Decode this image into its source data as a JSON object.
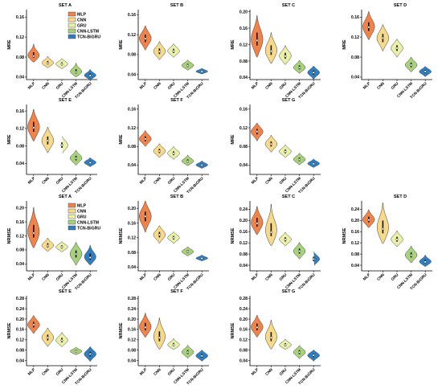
{
  "colors": {
    "MLP": "#f0834a",
    "CNN": "#f7d98a",
    "GRU": "#eaf0a8",
    "CNN-LSTM": "#a8d27a",
    "TCN-BiGRU": "#2f7fc0"
  },
  "legend": [
    "MLP",
    "CNN",
    "GRU",
    "CNN-LSTM",
    "TCN-BiGRU"
  ],
  "chart_data": [
    {
      "type": "violin",
      "title": "SET A",
      "ylabel": "MRE",
      "categories": [
        "MLP",
        "CNN",
        "GRU",
        "CNN-LSTM",
        "TCN-BiGRU"
      ],
      "ylim": [
        0.035,
        0.175
      ],
      "yticks": [
        0.04,
        0.08,
        0.12,
        0.16
      ],
      "series": [
        {
          "median": 0.082,
          "min": 0.072,
          "max": 0.104
        },
        {
          "median": 0.068,
          "min": 0.06,
          "max": 0.08
        },
        {
          "median": 0.066,
          "min": 0.058,
          "max": 0.076
        },
        {
          "median": 0.05,
          "min": 0.042,
          "max": 0.066
        },
        {
          "median": 0.043,
          "min": 0.036,
          "max": 0.054
        }
      ]
    },
    {
      "type": "violin",
      "title": "SET B",
      "ylabel": "MRE",
      "categories": [
        "MLP",
        "CNN",
        "GRU",
        "CNN-LSTM",
        "TCN-BiGRU"
      ],
      "ylim": [
        0.03,
        0.17
      ],
      "yticks": [
        0.04,
        0.08,
        0.12,
        0.16
      ],
      "series": [
        {
          "median": 0.112,
          "min": 0.092,
          "max": 0.135
        },
        {
          "median": 0.086,
          "min": 0.072,
          "max": 0.104
        },
        {
          "median": 0.087,
          "min": 0.076,
          "max": 0.1
        },
        {
          "median": 0.058,
          "min": 0.05,
          "max": 0.068
        },
        {
          "median": 0.046,
          "min": 0.042,
          "max": 0.052
        }
      ]
    },
    {
      "type": "violin",
      "title": "SET C",
      "ylabel": "MRE",
      "categories": [
        "MLP",
        "CNN",
        "GRU",
        "CNN-LSTM",
        "TCN-BiGRU"
      ],
      "ylim": [
        0.035,
        0.205
      ],
      "yticks": [
        0.04,
        0.08,
        0.12,
        0.16,
        0.2
      ],
      "series": [
        {
          "median": 0.13,
          "min": 0.095,
          "max": 0.185
        },
        {
          "median": 0.104,
          "min": 0.078,
          "max": 0.145
        },
        {
          "median": 0.092,
          "min": 0.074,
          "max": 0.115
        },
        {
          "median": 0.064,
          "min": 0.052,
          "max": 0.08
        },
        {
          "median": 0.052,
          "min": 0.038,
          "max": 0.066
        }
      ]
    },
    {
      "type": "violin",
      "title": "SET D",
      "ylabel": "MRE",
      "categories": [
        "MLP",
        "CNN",
        "GRU",
        "CNN-LSTM",
        "TCN-BiGRU"
      ],
      "ylim": [
        0.035,
        0.175
      ],
      "yticks": [
        0.04,
        0.08,
        0.12,
        0.16
      ],
      "series": [
        {
          "median": 0.14,
          "min": 0.118,
          "max": 0.168
        },
        {
          "median": 0.118,
          "min": 0.095,
          "max": 0.142
        },
        {
          "median": 0.098,
          "min": 0.082,
          "max": 0.114
        },
        {
          "median": 0.064,
          "min": 0.052,
          "max": 0.078
        },
        {
          "median": 0.051,
          "min": 0.042,
          "max": 0.06
        }
      ]
    },
    {
      "type": "violin",
      "title": "SET E",
      "ylabel": "MRE",
      "categories": [
        "MLP",
        "CNN",
        "GRU",
        "CNN-LSTM",
        "TCN-BiGRU"
      ],
      "ylim": [
        0.015,
        0.175
      ],
      "yticks": [
        0.04,
        0.08,
        0.12,
        0.16
      ],
      "series": [
        {
          "median": 0.122,
          "min": 0.095,
          "max": 0.16
        },
        {
          "median": 0.092,
          "min": 0.068,
          "max": 0.12
        },
        {
          "median": 0.082,
          "min": 0.064,
          "max": 0.1
        },
        {
          "median": 0.052,
          "min": 0.038,
          "max": 0.068
        },
        {
          "median": 0.042,
          "min": 0.034,
          "max": 0.052
        }
      ]
    },
    {
      "type": "violin",
      "title": "SET F",
      "ylabel": "MRE",
      "categories": [
        "MLP",
        "CNN",
        "GRU",
        "CNN-LSTM",
        "TCN-BiGRU"
      ],
      "ylim": [
        0.02,
        0.17
      ],
      "yticks": [
        0.04,
        0.08,
        0.12,
        0.16
      ],
      "series": [
        {
          "median": 0.096,
          "min": 0.082,
          "max": 0.112
        },
        {
          "median": 0.07,
          "min": 0.058,
          "max": 0.084
        },
        {
          "median": 0.065,
          "min": 0.054,
          "max": 0.078
        },
        {
          "median": 0.048,
          "min": 0.04,
          "max": 0.06
        },
        {
          "median": 0.04,
          "min": 0.034,
          "max": 0.048
        }
      ]
    },
    {
      "type": "violin",
      "title": "SET G",
      "ylabel": "MRE",
      "categories": [
        "MLP",
        "CNN",
        "GRU",
        "CNN-LSTM",
        "TCN-BiGRU"
      ],
      "ylim": [
        0.02,
        0.17
      ],
      "yticks": [
        0.04,
        0.08,
        0.12,
        0.16
      ],
      "series": [
        {
          "median": 0.112,
          "min": 0.094,
          "max": 0.128
        },
        {
          "median": 0.085,
          "min": 0.07,
          "max": 0.102
        },
        {
          "median": 0.069,
          "min": 0.058,
          "max": 0.082
        },
        {
          "median": 0.052,
          "min": 0.042,
          "max": 0.064
        },
        {
          "median": 0.043,
          "min": 0.036,
          "max": 0.052
        }
      ]
    },
    {
      "type": "violin",
      "title": "SET A",
      "ylabel": "NRMSE",
      "categories": [
        "MLP",
        "CNN",
        "GRU",
        "CNN-LSTM",
        "TCN-BiGRU"
      ],
      "ylim": [
        0.02,
        0.22
      ],
      "yticks": [
        0.04,
        0.08,
        0.12,
        0.16,
        0.2
      ],
      "series": [
        {
          "median": 0.128,
          "min": 0.092,
          "max": 0.195
        },
        {
          "median": 0.092,
          "min": 0.078,
          "max": 0.112
        },
        {
          "median": 0.088,
          "min": 0.076,
          "max": 0.102
        },
        {
          "median": 0.068,
          "min": 0.04,
          "max": 0.098
        },
        {
          "median": 0.058,
          "min": 0.04,
          "max": 0.09
        }
      ]
    },
    {
      "type": "violin",
      "title": "SET B",
      "ylabel": "NRMSE",
      "categories": [
        "MLP",
        "CNN",
        "GRU",
        "CNN-LSTM",
        "TCN-BiGRU"
      ],
      "ylim": [
        0.03,
        0.22
      ],
      "yticks": [
        0.04,
        0.08,
        0.12,
        0.16,
        0.2
      ],
      "series": [
        {
          "median": 0.178,
          "min": 0.14,
          "max": 0.215
        },
        {
          "median": 0.128,
          "min": 0.108,
          "max": 0.15
        },
        {
          "median": 0.12,
          "min": 0.106,
          "max": 0.134
        },
        {
          "median": 0.082,
          "min": 0.072,
          "max": 0.094
        },
        {
          "median": 0.064,
          "min": 0.058,
          "max": 0.072
        }
      ]
    },
    {
      "type": "violin",
      "title": "SET C",
      "ylabel": "NRMSE",
      "categories": [
        "MLP",
        "CNN",
        "GRU",
        "CNN-LSTM",
        "TCN-BiGRU"
      ],
      "ylim": [
        0.02,
        0.27
      ],
      "yticks": [
        0.04,
        0.08,
        0.12,
        0.16,
        0.2,
        0.24
      ],
      "series": [
        {
          "median": 0.19,
          "min": 0.155,
          "max": 0.245
        },
        {
          "median": 0.158,
          "min": 0.118,
          "max": 0.25
        },
        {
          "median": 0.132,
          "min": 0.112,
          "max": 0.155
        },
        {
          "median": 0.09,
          "min": 0.066,
          "max": 0.118
        },
        {
          "median": 0.062,
          "min": 0.04,
          "max": 0.086
        }
      ]
    },
    {
      "type": "violin",
      "title": "SET D",
      "ylabel": "NRMSE",
      "categories": [
        "MLP",
        "CNN",
        "GRU",
        "CNN-LSTM",
        "TCN-BiGRU"
      ],
      "ylim": [
        0.02,
        0.27
      ],
      "yticks": [
        0.04,
        0.08,
        0.12,
        0.16,
        0.2,
        0.24
      ],
      "series": [
        {
          "median": 0.202,
          "min": 0.178,
          "max": 0.235
        },
        {
          "median": 0.17,
          "min": 0.125,
          "max": 0.255
        },
        {
          "median": 0.132,
          "min": 0.11,
          "max": 0.16
        },
        {
          "median": 0.076,
          "min": 0.052,
          "max": 0.105
        },
        {
          "median": 0.052,
          "min": 0.038,
          "max": 0.074
        }
      ]
    },
    {
      "type": "violin",
      "title": "SET E",
      "ylabel": "NRMSE",
      "categories": [
        "MLP",
        "CNN",
        "GRU",
        "CNN-LSTM",
        "TCN-BiGRU"
      ],
      "ylim": [
        0.02,
        0.29
      ],
      "yticks": [
        0.04,
        0.08,
        0.12,
        0.16,
        0.2,
        0.24,
        0.28
      ],
      "series": [
        {
          "median": 0.178,
          "min": 0.148,
          "max": 0.21
        },
        {
          "median": 0.128,
          "min": 0.098,
          "max": 0.162
        },
        {
          "median": 0.118,
          "min": 0.096,
          "max": 0.145
        },
        {
          "median": 0.075,
          "min": 0.064,
          "max": 0.09
        },
        {
          "median": 0.065,
          "min": 0.04,
          "max": 0.09
        }
      ]
    },
    {
      "type": "violin",
      "title": "SET F",
      "ylabel": "NRMSE",
      "categories": [
        "MLP",
        "CNN",
        "GRU",
        "CNN-LSTM",
        "TCN-BiGRU"
      ],
      "ylim": [
        0.02,
        0.29
      ],
      "yticks": [
        0.04,
        0.08,
        0.12,
        0.16,
        0.2,
        0.24,
        0.28
      ],
      "series": [
        {
          "median": 0.168,
          "min": 0.135,
          "max": 0.218
        },
        {
          "median": 0.128,
          "min": 0.09,
          "max": 0.198
        },
        {
          "median": 0.1,
          "min": 0.085,
          "max": 0.122
        },
        {
          "median": 0.072,
          "min": 0.052,
          "max": 0.096
        },
        {
          "median": 0.058,
          "min": 0.04,
          "max": 0.078
        }
      ]
    },
    {
      "type": "violin",
      "title": "SET G",
      "ylabel": "NRMSE",
      "categories": [
        "MLP",
        "CNN",
        "GRU",
        "CNN-LSTM",
        "TCN-BiGRU"
      ],
      "ylim": [
        0.02,
        0.29
      ],
      "yticks": [
        0.04,
        0.08,
        0.12,
        0.16,
        0.2,
        0.24,
        0.28
      ],
      "series": [
        {
          "median": 0.168,
          "min": 0.135,
          "max": 0.21
        },
        {
          "median": 0.128,
          "min": 0.09,
          "max": 0.19
        },
        {
          "median": 0.1,
          "min": 0.085,
          "max": 0.12
        },
        {
          "median": 0.072,
          "min": 0.05,
          "max": 0.095
        },
        {
          "median": 0.06,
          "min": 0.04,
          "max": 0.078
        }
      ]
    }
  ]
}
